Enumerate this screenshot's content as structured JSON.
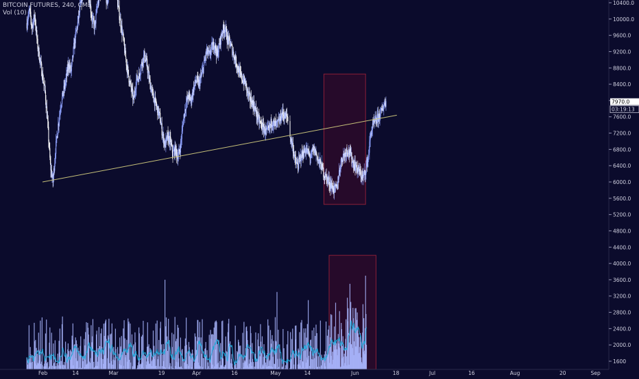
{
  "chart_data": {
    "type": "candlestick",
    "legend": {
      "title": "BITCOIN FUTURES, 240, CME",
      "indicator": "Vol (10)"
    },
    "price_axis": {
      "ticks": [
        10400,
        10000,
        9600,
        9200,
        8800,
        8400,
        8000,
        7600,
        7200,
        6800,
        6400,
        6000,
        5600,
        5200,
        4800,
        4400,
        4000,
        3600,
        3200,
        2800,
        2400,
        2000,
        1600
      ],
      "labels": [
        "10400.0",
        "10000.0",
        "9600.0",
        "9200.0",
        "8800.0",
        "8400.0",
        "8000.0",
        "7600.0",
        "7200.0",
        "6800.0",
        "6400.0",
        "6000.0",
        "5600.0",
        "5200.0",
        "4800.0",
        "4400.0",
        "4000.0",
        "3600.0",
        "3200.0",
        "2800.0",
        "2400.0",
        "2000.0",
        "1600"
      ],
      "last_price_label": "7970.0",
      "countdown_label": "03:19:13"
    },
    "time_axis": {
      "labels": [
        "Feb",
        "14",
        "Mar",
        "19",
        "Apr",
        "16",
        "May",
        "14",
        "Jun",
        "18",
        "Jul",
        "16",
        "Aug",
        "20",
        "Sep"
      ],
      "days": [
        0,
        13,
        27,
        46,
        59,
        74,
        89,
        102,
        120,
        136,
        150,
        165,
        181,
        200,
        212
      ]
    },
    "price_path": [
      [
        -6,
        9900
      ],
      [
        -5,
        10200
      ],
      [
        -4,
        9800
      ],
      [
        -3,
        10100
      ],
      [
        -2,
        9400
      ],
      [
        -1,
        9000
      ],
      [
        0,
        8600
      ],
      [
        1,
        8200
      ],
      [
        2,
        7400
      ],
      [
        3,
        6400
      ],
      [
        4,
        6000
      ],
      [
        5,
        6800
      ],
      [
        6,
        7400
      ],
      [
        7,
        7900
      ],
      [
        8,
        8200
      ],
      [
        9,
        8500
      ],
      [
        10,
        8900
      ],
      [
        11,
        8700
      ],
      [
        12,
        9300
      ],
      [
        13,
        9700
      ],
      [
        14,
        10100
      ],
      [
        15,
        10500
      ],
      [
        16,
        10800
      ],
      [
        17,
        11000
      ],
      [
        18,
        10500
      ],
      [
        19,
        10000
      ],
      [
        20,
        9800
      ],
      [
        21,
        10300
      ],
      [
        22,
        10600
      ],
      [
        23,
        10900
      ],
      [
        24,
        10600
      ],
      [
        25,
        10300
      ],
      [
        26,
        10900
      ],
      [
        27,
        11000
      ],
      [
        28,
        10800
      ],
      [
        29,
        10300
      ],
      [
        30,
        9900
      ],
      [
        31,
        9500
      ],
      [
        32,
        9000
      ],
      [
        33,
        8600
      ],
      [
        34,
        8300
      ],
      [
        35,
        8000
      ],
      [
        36,
        8500
      ],
      [
        37,
        8600
      ],
      [
        38,
        8900
      ],
      [
        39,
        9100
      ],
      [
        40,
        8900
      ],
      [
        41,
        8500
      ],
      [
        42,
        8200
      ],
      [
        43,
        8000
      ],
      [
        44,
        7800
      ],
      [
        45,
        7600
      ],
      [
        46,
        7200
      ],
      [
        47,
        6900
      ],
      [
        48,
        7100
      ],
      [
        49,
        7000
      ],
      [
        50,
        6700
      ],
      [
        51,
        6800
      ],
      [
        52,
        6600
      ],
      [
        53,
        6900
      ],
      [
        54,
        7500
      ],
      [
        55,
        7900
      ],
      [
        56,
        8100
      ],
      [
        57,
        8000
      ],
      [
        58,
        8300
      ],
      [
        59,
        8500
      ],
      [
        60,
        8400
      ],
      [
        61,
        8600
      ],
      [
        62,
        8900
      ],
      [
        63,
        9200
      ],
      [
        64,
        9100
      ],
      [
        65,
        9300
      ],
      [
        66,
        9400
      ],
      [
        67,
        9100
      ],
      [
        68,
        9400
      ],
      [
        69,
        9700
      ],
      [
        70,
        9800
      ],
      [
        71,
        9500
      ],
      [
        72,
        9400
      ],
      [
        73,
        9200
      ],
      [
        74,
        9000
      ],
      [
        75,
        8800
      ],
      [
        76,
        8600
      ],
      [
        77,
        8500
      ],
      [
        78,
        8400
      ],
      [
        79,
        8100
      ],
      [
        80,
        8000
      ],
      [
        81,
        7900
      ],
      [
        82,
        7700
      ],
      [
        83,
        7500
      ],
      [
        84,
        7400
      ],
      [
        85,
        7300
      ],
      [
        86,
        7200
      ],
      [
        87,
        7300
      ],
      [
        88,
        7500
      ],
      [
        89,
        7400
      ],
      [
        90,
        7400
      ],
      [
        91,
        7500
      ],
      [
        92,
        7700
      ],
      [
        93,
        7600
      ],
      [
        94,
        7600
      ],
      [
        95,
        7100
      ],
      [
        96,
        6900
      ],
      [
        97,
        6500
      ],
      [
        98,
        6400
      ],
      [
        99,
        6600
      ],
      [
        100,
        6700
      ],
      [
        101,
        6800
      ],
      [
        102,
        6700
      ],
      [
        103,
        6600
      ],
      [
        104,
        6800
      ],
      [
        105,
        6700
      ],
      [
        106,
        6500
      ],
      [
        107,
        6400
      ],
      [
        108,
        6200
      ],
      [
        109,
        6100
      ],
      [
        110,
        6000
      ],
      [
        111,
        5900
      ],
      [
        112,
        5800
      ],
      [
        113,
        5850
      ],
      [
        114,
        6300
      ],
      [
        115,
        6600
      ],
      [
        116,
        6700
      ],
      [
        117,
        6800
      ],
      [
        118,
        6700
      ],
      [
        119,
        6500
      ],
      [
        120,
        6400
      ],
      [
        121,
        6300
      ],
      [
        122,
        6200
      ],
      [
        123,
        6100
      ],
      [
        124,
        6300
      ],
      [
        125,
        6600
      ],
      [
        126,
        7200
      ],
      [
        127,
        7400
      ],
      [
        128,
        7500
      ],
      [
        129,
        7600
      ],
      [
        130,
        7700
      ],
      [
        131,
        7900
      ],
      [
        132,
        8000
      ]
    ],
    "trend_line": {
      "from": [
        0,
        6000
      ],
      "to": [
        136,
        7640
      ],
      "color": "#c8c27a"
    },
    "highlight_boxes": [
      {
        "target": "price",
        "from_day": 108,
        "to_day": 124,
        "price_top": 8650,
        "price_bottom": 5450,
        "color": "#8a1f38"
      },
      {
        "target": "volume",
        "from_day": 110,
        "to_day": 128,
        "vol_top": 4200,
        "vol_bottom": 1400,
        "color": "#8a1f38"
      }
    ],
    "volume_spikes": [
      [
        47,
        3600
      ],
      [
        90,
        3300
      ],
      [
        102,
        3100
      ],
      [
        118,
        3500
      ],
      [
        124,
        3700
      ],
      [
        126,
        3500
      ],
      [
        125,
        3300
      ],
      [
        123,
        3000
      ]
    ],
    "colors": {
      "background": "#0b0b2c",
      "axis_text": "#d0d0e0",
      "candle": "#8fa2ff",
      "candle_alt": "#ffffff",
      "volume_bar": "#aab7ff",
      "volume_ma": "#23a8d9",
      "last_price_bg": "#ffffff"
    }
  }
}
